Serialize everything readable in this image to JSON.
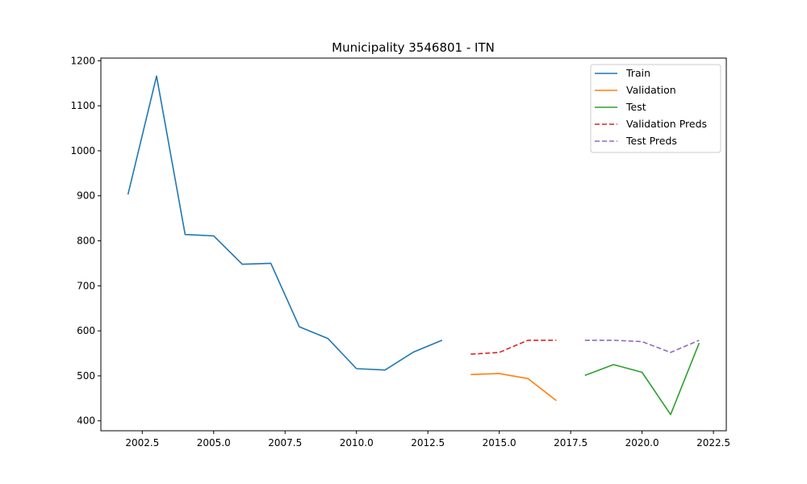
{
  "chart_data": {
    "type": "line",
    "title": "Municipality 3546801 - ITN",
    "xlabel": "",
    "ylabel": "",
    "xlim": [
      2001.05,
      2022.95
    ],
    "ylim": [
      378,
      1206
    ],
    "xticks": [
      2002.5,
      2005.0,
      2007.5,
      2010.0,
      2012.5,
      2015.0,
      2017.5,
      2020.0,
      2022.5
    ],
    "xtick_labels": [
      "2002.5",
      "2005.0",
      "2007.5",
      "2010.0",
      "2012.5",
      "2015.0",
      "2017.5",
      "2020.0",
      "2022.5"
    ],
    "yticks": [
      400,
      500,
      600,
      700,
      800,
      900,
      1000,
      1100,
      1200
    ],
    "ytick_labels": [
      "400",
      "500",
      "600",
      "700",
      "800",
      "900",
      "1000",
      "1100",
      "1200"
    ],
    "grid": false,
    "legend_position": "top-right",
    "series": [
      {
        "name": "Train",
        "color": "#1f77b4",
        "dash": "solid",
        "x": [
          2002,
          2003,
          2004,
          2005,
          2006,
          2007,
          2008,
          2009,
          2010,
          2011,
          2012,
          2013
        ],
        "y": [
          903,
          1166,
          814,
          811,
          748,
          750,
          609,
          583,
          516,
          513,
          553,
          579
        ]
      },
      {
        "name": "Validation",
        "color": "#ff7f0e",
        "dash": "solid",
        "x": [
          2014,
          2015,
          2016,
          2017
        ],
        "y": [
          503,
          505,
          494,
          445
        ]
      },
      {
        "name": "Test",
        "color": "#2ca02c",
        "dash": "solid",
        "x": [
          2018,
          2019,
          2020,
          2021,
          2022
        ],
        "y": [
          501,
          525,
          508,
          414,
          573
        ]
      },
      {
        "name": "Validation Preds",
        "color": "#d62728",
        "dash": "dashed",
        "x": [
          2014,
          2015,
          2016,
          2017
        ],
        "y": [
          548,
          552,
          579,
          579
        ]
      },
      {
        "name": "Test Preds",
        "color": "#9467bd",
        "dash": "dashed",
        "x": [
          2018,
          2019,
          2020,
          2021,
          2022
        ],
        "y": [
          579,
          579,
          576,
          552,
          579
        ]
      }
    ]
  }
}
